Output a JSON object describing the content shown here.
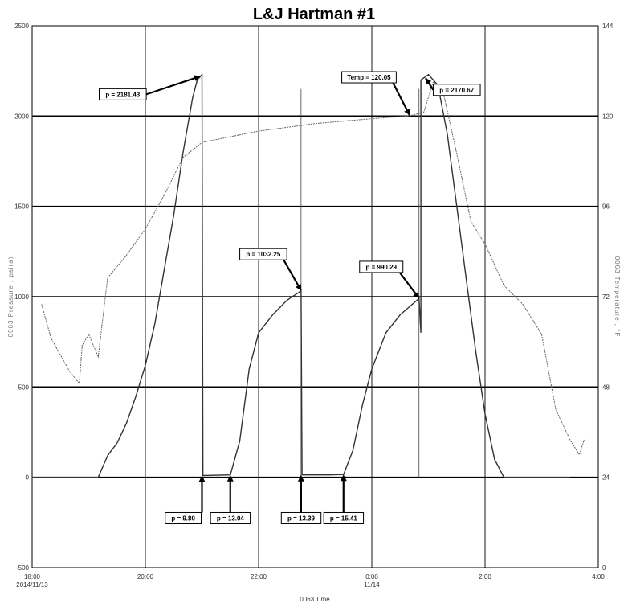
{
  "chart_data": {
    "type": "line",
    "title": "L&J Hartman #1",
    "xlabel": "0063 Time",
    "ylabel_left": "0063 Pressure , psi(a)",
    "ylabel_right": "0063 Temperature , °F",
    "xlim": [
      "2014-11-13 18:00",
      "2014-11-14 04:00"
    ],
    "ylim_left": [
      -500,
      2500
    ],
    "ylim_right": [
      0,
      144
    ],
    "x_ticks": [
      {
        "time": "18:00",
        "date": "2014/11/13"
      },
      {
        "time": "20:00",
        "date": ""
      },
      {
        "time": "22:00",
        "date": ""
      },
      {
        "time": "0:00",
        "date": "11/14"
      },
      {
        "time": "2:00",
        "date": ""
      },
      {
        "time": "4:00",
        "date": ""
      }
    ],
    "y_ticks_left": [
      "2500",
      "2000",
      "1500",
      "1000",
      "500",
      "0",
      "-500"
    ],
    "y_ticks_right": [
      "144",
      "120",
      "96",
      "72",
      "48",
      "24",
      "0"
    ],
    "grid": true,
    "series": [
      {
        "type": "pressure",
        "color": "#333333",
        "points": [
          [
            "18:00",
            0
          ],
          [
            "19:10",
            0
          ],
          [
            "19:20",
            120
          ],
          [
            "19:30",
            190
          ],
          [
            "19:40",
            300
          ],
          [
            "19:50",
            450
          ],
          [
            "20:00",
            620
          ],
          [
            "20:10",
            850
          ],
          [
            "20:20",
            1150
          ],
          [
            "20:30",
            1450
          ],
          [
            "20:40",
            1800
          ],
          [
            "20:50",
            2100
          ],
          [
            "20:55",
            2200
          ],
          [
            "21:00",
            2230
          ],
          [
            "21:01",
            9.8
          ],
          [
            "21:30",
            13.04
          ],
          [
            "21:40",
            200
          ],
          [
            "21:50",
            600
          ],
          [
            "22:00",
            800
          ],
          [
            "22:15",
            900
          ],
          [
            "22:30",
            980
          ],
          [
            "22:45",
            1032.25
          ],
          [
            "22:46",
            13.39
          ],
          [
            "23:15",
            13.39
          ],
          [
            "23:30",
            15.41
          ],
          [
            "23:40",
            150
          ],
          [
            "23:50",
            400
          ],
          [
            "0:00",
            600
          ],
          [
            "0:15",
            800
          ],
          [
            "0:30",
            900
          ],
          [
            "0:50",
            990.29
          ],
          [
            "0:52",
            800
          ],
          [
            "0:52",
            2200
          ],
          [
            "1:00",
            2230
          ],
          [
            "1:10",
            2170.67
          ],
          [
            "1:20",
            1900
          ],
          [
            "1:30",
            1500
          ],
          [
            "1:40",
            1100
          ],
          [
            "1:50",
            700
          ],
          [
            "2:00",
            350
          ],
          [
            "2:10",
            100
          ],
          [
            "2:20",
            0
          ],
          [
            "3:30",
            0
          ]
        ]
      },
      {
        "type": "temperature",
        "color": "#666666",
        "points": [
          [
            "18:10",
            70
          ],
          [
            "18:20",
            61
          ],
          [
            "18:40",
            52
          ],
          [
            "18:50",
            49
          ],
          [
            "18:53",
            59
          ],
          [
            "19:00",
            62
          ],
          [
            "19:10",
            56
          ],
          [
            "19:20",
            77
          ],
          [
            "19:40",
            83
          ],
          [
            "20:00",
            90
          ],
          [
            "20:20",
            99
          ],
          [
            "20:40",
            109
          ],
          [
            "21:00",
            113
          ],
          [
            "22:00",
            116
          ],
          [
            "23:00",
            118
          ],
          [
            "0:00",
            119.3
          ],
          [
            "0:40",
            120.05
          ],
          [
            "0:55",
            121
          ],
          [
            "1:05",
            129
          ],
          [
            "1:15",
            127
          ],
          [
            "1:30",
            110
          ],
          [
            "1:45",
            92
          ],
          [
            "2:00",
            86
          ],
          [
            "2:20",
            75
          ],
          [
            "2:40",
            70
          ],
          [
            "3:00",
            62
          ],
          [
            "3:15",
            42
          ],
          [
            "3:30",
            34
          ],
          [
            "3:40",
            30
          ],
          [
            "3:45",
            34
          ]
        ]
      }
    ],
    "annotations": [
      {
        "label": "p = 2181.43",
        "time": "20:58",
        "value": 2220,
        "box_time": "19:36",
        "box_value": 2120,
        "orient": "h"
      },
      {
        "label": "p = 1032.25",
        "time": "22:45",
        "value": 1035,
        "box_time": "22:05",
        "box_value": 1235,
        "orient": "v"
      },
      {
        "label": "Temp = 120.05",
        "time": "0:40",
        "value": 2005,
        "box_time": "23:57",
        "box_value": 2215,
        "orient": "v"
      },
      {
        "label": "p = 2170.67",
        "time": "0:57",
        "value": 2210,
        "box_time": "1:30",
        "box_value": 2145,
        "orient": "h"
      },
      {
        "label": "p = 990.29",
        "time": "0:50",
        "value": 992,
        "box_time": "0:10",
        "box_value": 1165,
        "orient": "v"
      },
      {
        "label": "p = 9.80",
        "time": "21:00",
        "value": 10,
        "box_time": "20:35",
        "box_value": -195,
        "orient": "up"
      },
      {
        "label": "p = 13.04",
        "time": "21:30",
        "value": 13,
        "box_time": "21:25",
        "box_value": -195,
        "orient": "up"
      },
      {
        "label": "p = 13.39",
        "time": "22:45",
        "value": 13,
        "box_time": "22:40",
        "box_value": -195,
        "orient": "up"
      },
      {
        "label": "p = 15.41",
        "time": "23:30",
        "value": 15,
        "box_time": "23:25",
        "box_value": -195,
        "orient": "up"
      }
    ],
    "extra_vlines": [
      "21:00",
      "22:45",
      "0:50"
    ]
  }
}
